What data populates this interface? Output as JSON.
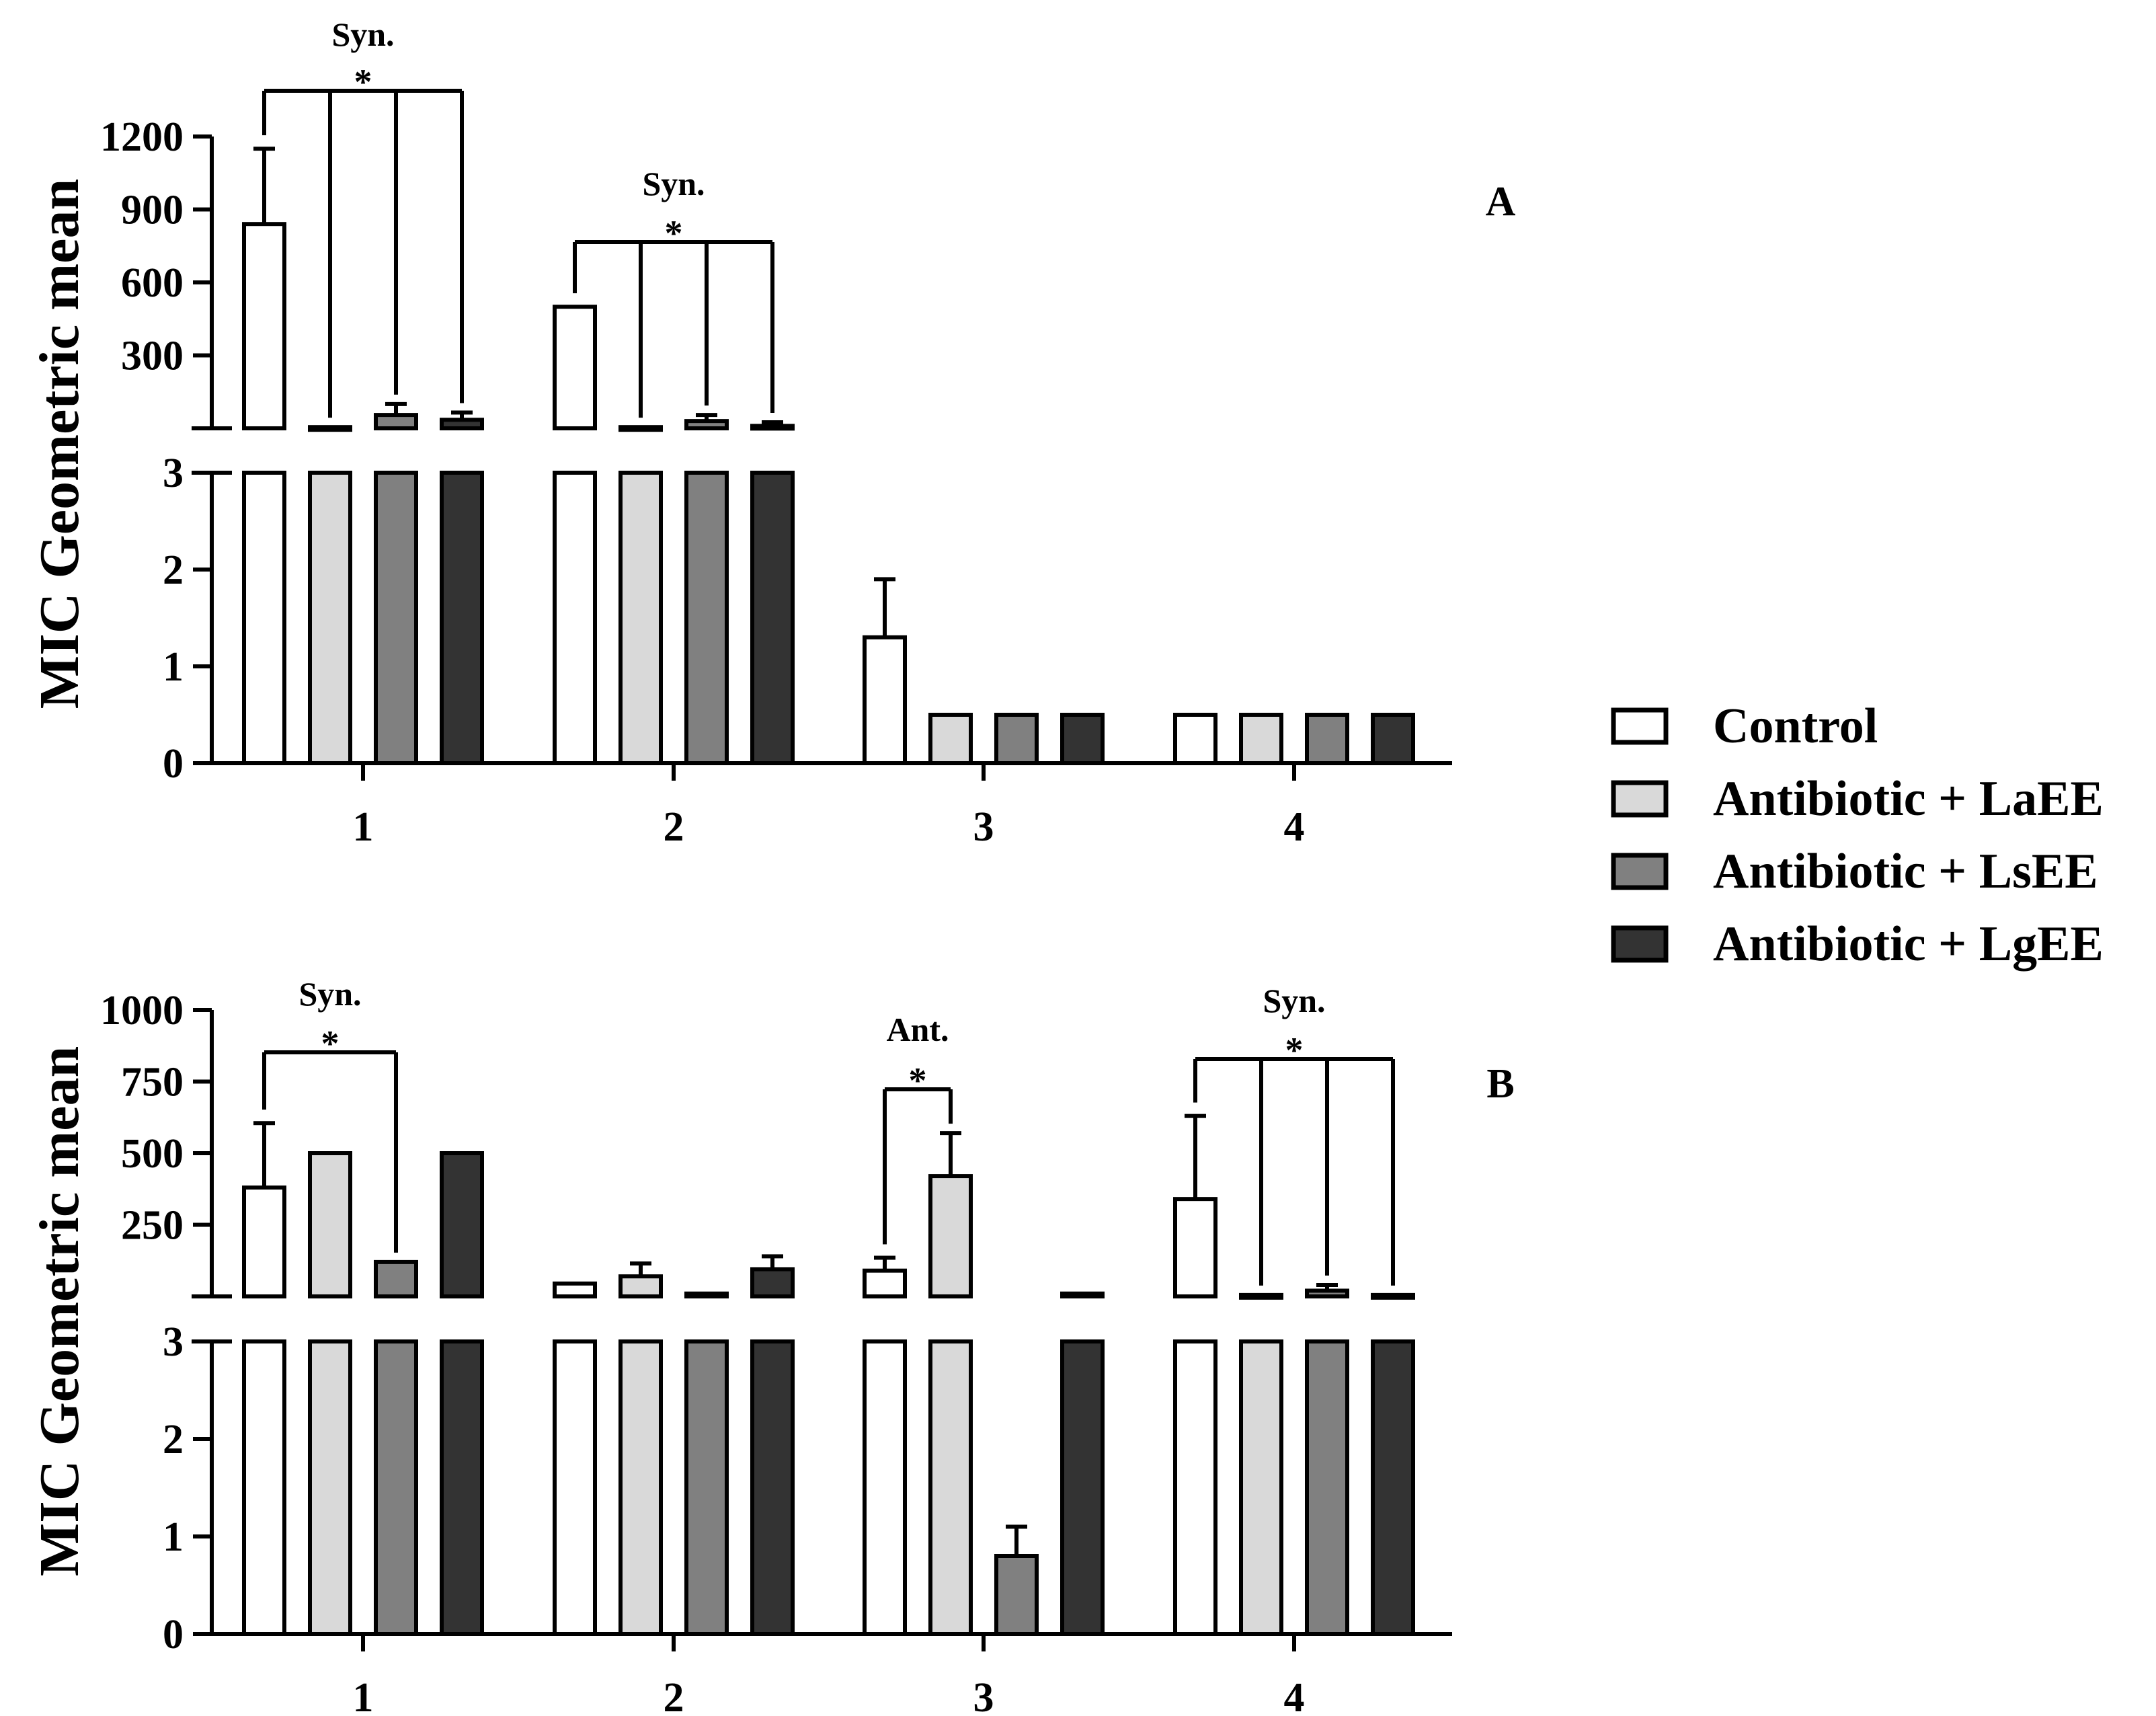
{
  "chart_data": [
    {
      "type": "bar",
      "panel_label": "A",
      "ylabel": "MIC Geometric mean",
      "categories": [
        "1",
        "2",
        "3",
        "4"
      ],
      "series": [
        {
          "name": "Control",
          "color": "#ffffff",
          "values": [
            840,
            500,
            1.3,
            0.5
          ],
          "error": [
            310,
            0,
            0.6,
            0
          ]
        },
        {
          "name": "Antibiotic + LaEE",
          "color": "#d9d9d9",
          "values": [
            5,
            5,
            0.5,
            0.5
          ],
          "error": [
            0,
            0,
            0,
            0
          ]
        },
        {
          "name": "Antibiotic + LsEE",
          "color": "#808080",
          "values": [
            55,
            30,
            0.5,
            0.5
          ],
          "error": [
            45,
            25,
            0,
            0
          ]
        },
        {
          "name": "Antibiotic + LgEE",
          "color": "#333333",
          "values": [
            35,
            10,
            0.5,
            0.5
          ],
          "error": [
            30,
            15,
            0,
            0
          ]
        }
      ],
      "axis_break": {
        "upper": {
          "ylim": [
            0,
            1200
          ],
          "ticks": [
            "300",
            "600",
            "900",
            "1200"
          ]
        },
        "lower": {
          "ylim": [
            0,
            3
          ],
          "ticks": [
            "0",
            "1",
            "2",
            "3"
          ]
        }
      },
      "annotations": [
        {
          "group": "1",
          "label": "Syn.",
          "star": "*",
          "from": 0,
          "to": [
            1,
            2,
            3
          ]
        },
        {
          "group": "2",
          "label": "Syn.",
          "star": "*",
          "from": 0,
          "to": [
            1,
            2,
            3
          ]
        }
      ]
    },
    {
      "type": "bar",
      "panel_label": "B",
      "ylabel": "MIC Geometric mean",
      "categories": [
        "1",
        "2",
        "3",
        "4"
      ],
      "series": [
        {
          "name": "Control",
          "color": "#ffffff",
          "values": [
            380,
            45,
            90,
            340
          ],
          "error": [
            225,
            0,
            45,
            290
          ]
        },
        {
          "name": "Antibiotic + LaEE",
          "color": "#d9d9d9",
          "values": [
            500,
            70,
            420,
            5
          ],
          "error": [
            0,
            45,
            150,
            0
          ]
        },
        {
          "name": "Antibiotic + LsEE",
          "color": "#808080",
          "values": [
            120,
            10,
            0.8,
            20
          ],
          "error": [
            0,
            0,
            0.3,
            20
          ]
        },
        {
          "name": "Antibiotic + LgEE",
          "color": "#333333",
          "values": [
            500,
            95,
            10,
            5
          ],
          "error": [
            0,
            45,
            0,
            0
          ]
        }
      ],
      "axis_break": {
        "upper": {
          "ylim": [
            0,
            1000
          ],
          "ticks": [
            "250",
            "500",
            "750",
            "1000"
          ]
        },
        "lower": {
          "ylim": [
            0,
            3
          ],
          "ticks": [
            "0",
            "1",
            "2",
            "3"
          ]
        }
      },
      "annotations": [
        {
          "group": "1",
          "label": "Syn.",
          "star": "*",
          "from": 0,
          "to": [
            2
          ]
        },
        {
          "group": "3",
          "label": "Ant.",
          "star": "*",
          "from": 0,
          "to": [
            1
          ]
        },
        {
          "group": "4",
          "label": "Syn.",
          "star": "*",
          "from": 0,
          "to": [
            1,
            2,
            3
          ]
        }
      ]
    }
  ],
  "legend": {
    "items": [
      {
        "label": "Control",
        "color": "#ffffff"
      },
      {
        "label": "Antibiotic + LaEE",
        "color": "#d9d9d9"
      },
      {
        "label": "Antibiotic + LsEE",
        "color": "#808080"
      },
      {
        "label": "Antibiotic + LgEE",
        "color": "#333333"
      }
    ]
  }
}
